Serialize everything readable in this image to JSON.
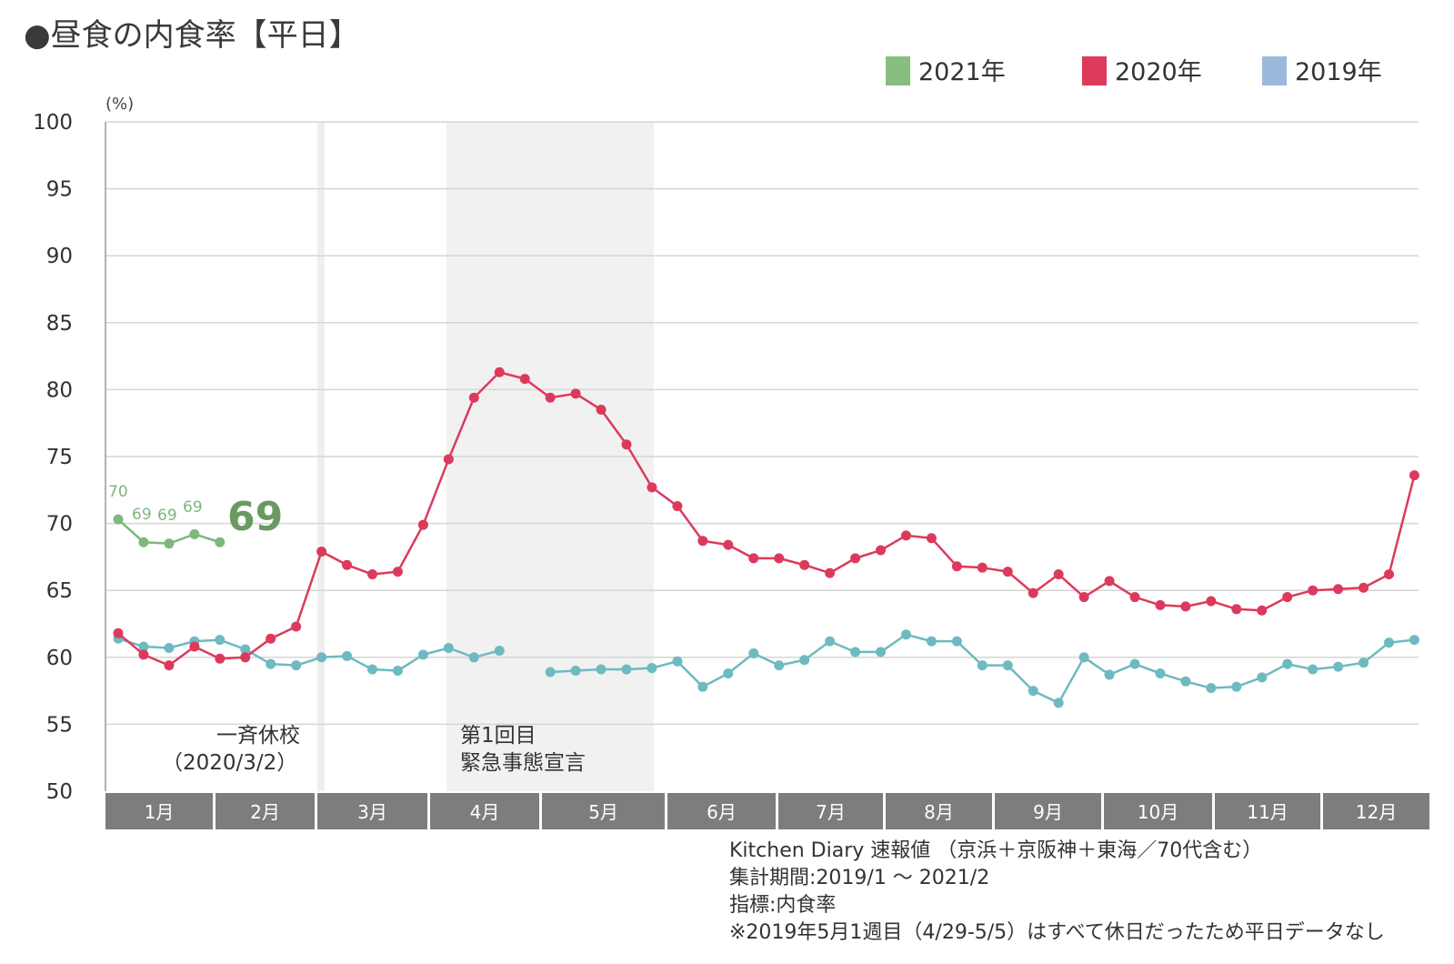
{
  "title": "●昼食の内食率【平日】",
  "chart_data": {
    "type": "line",
    "ylabel": "(%)",
    "ylim": [
      50,
      100
    ],
    "yticks": [
      50,
      55,
      60,
      65,
      70,
      75,
      80,
      85,
      90,
      95,
      100
    ],
    "grid": true,
    "legend_position": "top-right",
    "months": [
      "1月",
      "2月",
      "3月",
      "4月",
      "5月",
      "6月",
      "7月",
      "8月",
      "9月",
      "10月",
      "11月",
      "12月"
    ],
    "series": [
      {
        "name": "2021年",
        "color": "#7fb77e",
        "values": [
          70.3,
          68.6,
          68.5,
          69.2,
          68.6
        ]
      },
      {
        "name": "2020年",
        "color": "#dc3a5c",
        "values": [
          61.8,
          60.2,
          59.4,
          60.8,
          59.9,
          60.0,
          61.4,
          62.3,
          67.9,
          66.9,
          66.2,
          66.4,
          69.9,
          74.8,
          79.4,
          81.3,
          80.8,
          79.4,
          79.7,
          78.5,
          75.9,
          72.7,
          71.3,
          68.7,
          68.4,
          67.4,
          67.4,
          66.9,
          66.3,
          67.4,
          68.0,
          69.1,
          68.9,
          66.8,
          66.7,
          66.4,
          64.8,
          66.2,
          64.5,
          65.7,
          64.5,
          63.9,
          63.8,
          64.2,
          63.6,
          63.5,
          64.5,
          65.0,
          65.1,
          65.2,
          66.2,
          73.6
        ]
      },
      {
        "name": "2019年",
        "color": "#6dbac0",
        "values": [
          61.4,
          60.8,
          60.7,
          61.2,
          61.3,
          60.6,
          59.5,
          59.4,
          60.0,
          60.1,
          59.1,
          59.0,
          60.2,
          60.7,
          60.0,
          60.5,
          null,
          58.9,
          59.0,
          59.1,
          59.1,
          59.2,
          59.7,
          57.8,
          58.8,
          60.3,
          59.4,
          59.8,
          61.2,
          60.4,
          60.4,
          61.7,
          61.2,
          61.2,
          59.4,
          59.4,
          57.5,
          56.6,
          60.0,
          58.7,
          59.5,
          58.8,
          58.2,
          57.7,
          57.8,
          58.5,
          59.5,
          59.1,
          59.3,
          59.6,
          61.1,
          61.3
        ]
      }
    ],
    "point_labels_2021": [
      "70",
      "69",
      "69",
      "69"
    ],
    "latest_value_label": "69",
    "annotations": [
      {
        "lines": [
          "一斉休校",
          "（2020/3/2）"
        ]
      },
      {
        "lines": [
          "第1回目",
          "緊急事態宣言"
        ]
      }
    ]
  },
  "legend": {
    "colors": {
      "2021": "#88bf80",
      "2020": "#dd3b5c",
      "2019": "#9bbadb"
    }
  },
  "notes": [
    "Kitchen Diary  速報値 （京浜＋京阪神＋東海／70代含む）",
    "集計期間:2019/1 ～ 2021/2",
    "指標:内食率",
    "※2019年5月1週目（4/29-5/5）はすべて休日だったため平日データなし"
  ]
}
